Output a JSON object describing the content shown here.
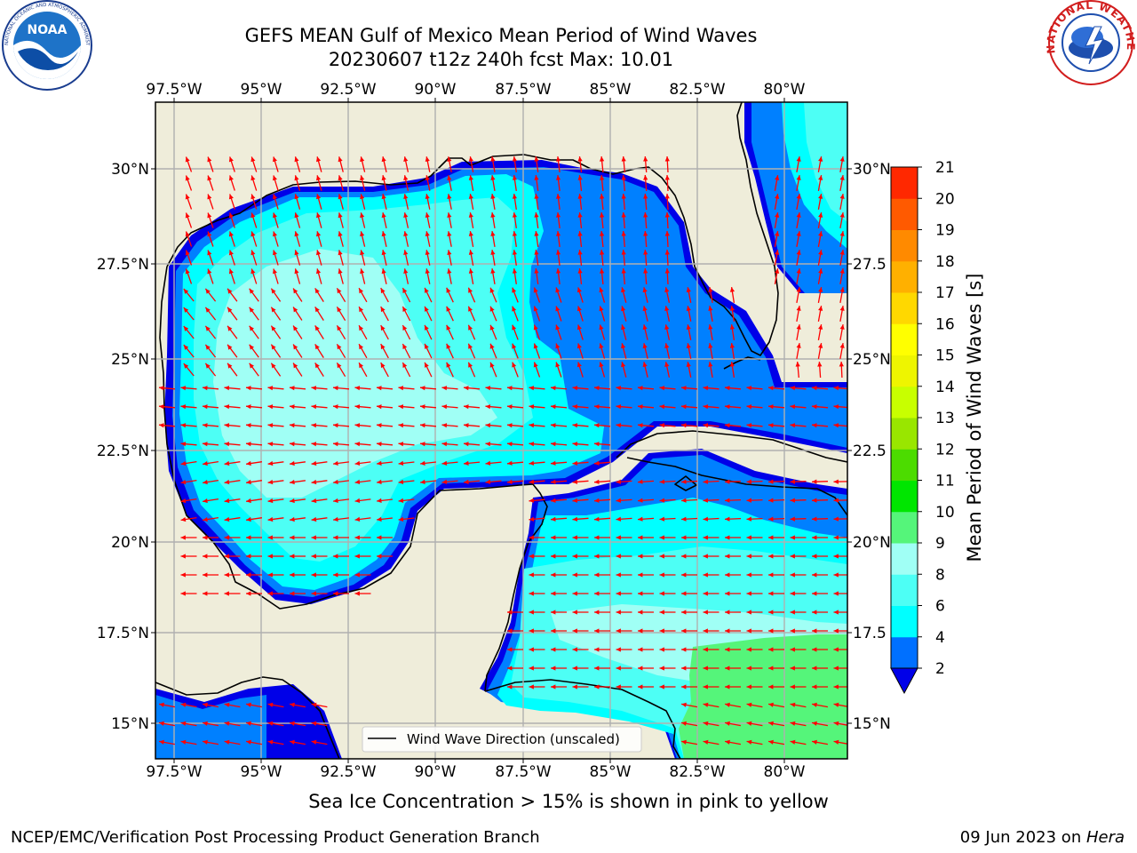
{
  "header": {
    "title_line1": "GEFS MEAN Gulf of Mexico Mean Period of Wind Waves",
    "title_line2": "20230607 t12z 240h fcst   Max: 10.01"
  },
  "logos": {
    "left": "noaa-logo",
    "left_text": "NOAA",
    "left_ring_text": "NATIONAL OCEANIC AND ATMOSPHERIC ADMINISTRATION · U.S. DEPARTMENT OF COMMERCE",
    "right": "nws-logo",
    "right_ring_text": "NATIONAL WEATHER SERVICE"
  },
  "map": {
    "lon_ticks": [
      "97.5°W",
      "95°W",
      "92.5°W",
      "90°W",
      "87.5°W",
      "85°W",
      "82.5°W",
      "80°W"
    ],
    "lat_ticks": [
      "30°N",
      "27.5°N",
      "25°N",
      "22.5°N",
      "20°N",
      "17.5°N",
      "15°N"
    ],
    "lat_ticks_right": [
      "30°N",
      "27.5",
      "25°N",
      "22.5",
      "20°N",
      "17.5",
      "15°N"
    ],
    "legend_label": "Wind Wave Direction (unscaled)",
    "colors": {
      "land": "#efedda",
      "ocean_2_4": "#0080ff",
      "ocean_0_2": "#0000e8",
      "ocean_4_6": "#00ffff",
      "ocean_6_8": "#4dfff5",
      "ocean_8_9": "#a0fff5",
      "ocean_9_10": "#55f57a",
      "arrow": "#ff0000",
      "grid": "#b0b0b0"
    }
  },
  "colorbar": {
    "label": "Mean Period of Wind Waves [s]",
    "ticks": [
      "2",
      "4",
      "6",
      "8",
      "9",
      "10",
      "11",
      "12",
      "13",
      "14",
      "15",
      "16",
      "17",
      "18",
      "19",
      "20",
      "21"
    ],
    "colors": [
      "#0070ff",
      "#00ffff",
      "#4dfff5",
      "#a0fff5",
      "#55f57a",
      "#00e600",
      "#4cdc00",
      "#99e600",
      "#c8ff00",
      "#eef500",
      "#ffff00",
      "#ffd800",
      "#ffb000",
      "#ff8a00",
      "#ff5a00",
      "#ff2800"
    ]
  },
  "caption": "Sea Ice Concentration > 15% is shown in pink to yellow",
  "footer": {
    "left": "NCEP/EMC/Verification Post Processing Product Generation Branch",
    "right_date": "09 Jun 2023 on ",
    "right_host": "Hera"
  }
}
